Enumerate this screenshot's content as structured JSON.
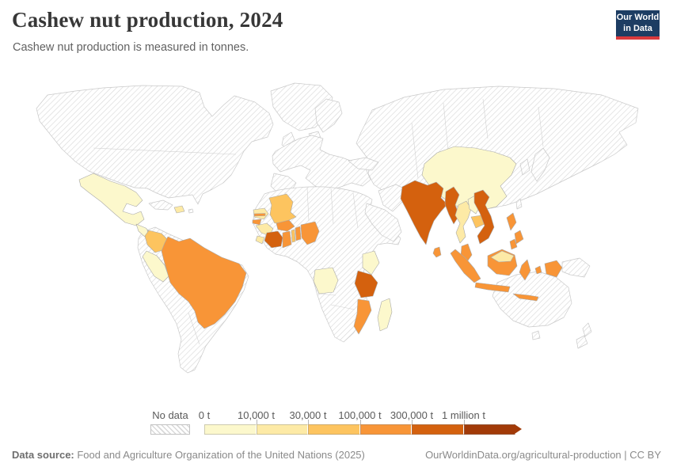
{
  "header": {
    "title": "Cashew nut production, 2024",
    "subtitle": "Cashew nut production is measured in tonnes.",
    "logo": {
      "line1": "Our World",
      "line2": "in Data"
    }
  },
  "footer": {
    "source_label": "Data source:",
    "source_text": " Food and Agriculture Organization of the United Nations (2025)",
    "credit_text": "OurWorldinData.org/agricultural-production | CC BY"
  },
  "colors": {
    "logo_navy": "#1d3d63",
    "logo_red": "#d93a3d",
    "land_border": "#c9c9c9",
    "hatch_line": "#d9d9d9"
  },
  "chart_data": {
    "type": "heatmap",
    "subtype": "world-choropleth",
    "title": "Cashew nut production, 2024",
    "unit": "tonnes",
    "legend_position": "bottom",
    "no_data_label": "No data",
    "no_data_style": "hatched",
    "bins": [
      {
        "label": "0 t",
        "color": "#fcf8cc"
      },
      {
        "label": "10,000 t",
        "color": "#fdeaa6"
      },
      {
        "label": "30,000 t",
        "color": "#fdc45f"
      },
      {
        "label": "100,000 t",
        "color": "#f89537"
      },
      {
        "label": "300,000 t",
        "color": "#d4610e"
      },
      {
        "label": "1 million t",
        "color": "#a23a08"
      }
    ],
    "countries": [
      {
        "name": "Mexico",
        "bin": 0
      },
      {
        "name": "Guatemala",
        "bin": 0
      },
      {
        "name": "Honduras",
        "bin": 0
      },
      {
        "name": "Dominican Republic",
        "bin": 1
      },
      {
        "name": "Colombia",
        "bin": 2
      },
      {
        "name": "Peru",
        "bin": 0
      },
      {
        "name": "Brazil",
        "bin": 3
      },
      {
        "name": "Senegal",
        "bin": 1
      },
      {
        "name": "Gambia",
        "bin": 3
      },
      {
        "name": "Guinea-Bissau",
        "bin": 3
      },
      {
        "name": "Guinea",
        "bin": 1
      },
      {
        "name": "Sierra Leone",
        "bin": 1
      },
      {
        "name": "Mali",
        "bin": 2
      },
      {
        "name": "Burkina Faso",
        "bin": 3
      },
      {
        "name": "Cote d'Ivoire",
        "bin": 4
      },
      {
        "name": "Ghana",
        "bin": 3
      },
      {
        "name": "Togo",
        "bin": 2
      },
      {
        "name": "Benin",
        "bin": 3
      },
      {
        "name": "Nigeria",
        "bin": 3
      },
      {
        "name": "Angola",
        "bin": 0
      },
      {
        "name": "Kenya",
        "bin": 0
      },
      {
        "name": "Tanzania",
        "bin": 4
      },
      {
        "name": "Mozambique",
        "bin": 3
      },
      {
        "name": "Madagascar",
        "bin": 0
      },
      {
        "name": "China",
        "bin": 0
      },
      {
        "name": "India",
        "bin": 4
      },
      {
        "name": "Sri Lanka",
        "bin": 3
      },
      {
        "name": "Myanmar",
        "bin": 4
      },
      {
        "name": "Thailand",
        "bin": 1
      },
      {
        "name": "Laos",
        "bin": 0
      },
      {
        "name": "Cambodia",
        "bin": 2
      },
      {
        "name": "Vietnam",
        "bin": 4
      },
      {
        "name": "Malaysia",
        "bin": 3
      },
      {
        "name": "Malaysia (Borneo)",
        "bin": 1
      },
      {
        "name": "Indonesia",
        "bin": 3
      },
      {
        "name": "Philippines",
        "bin": 3
      }
    ]
  }
}
